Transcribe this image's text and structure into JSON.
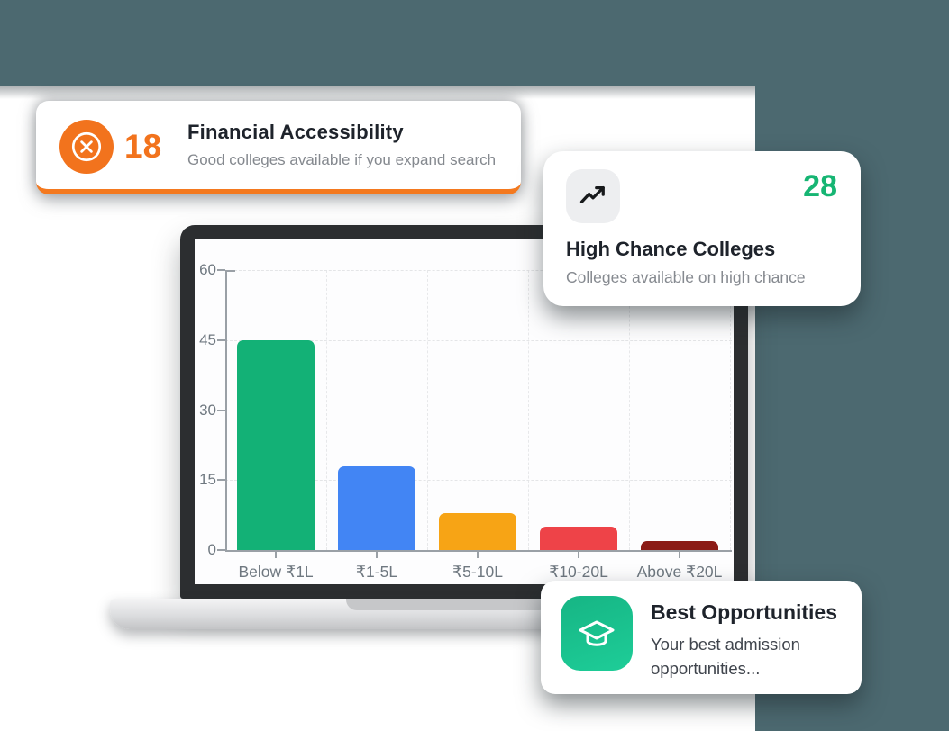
{
  "page": {
    "backdrop_color": "#4C6970",
    "panel_color": "#FFFFFF"
  },
  "cards": {
    "financial": {
      "value": "18",
      "title": "Financial Accessibility",
      "subtitle": "Good colleges available if you expand search",
      "accent": "#F2731D",
      "icon": "x-circle-icon"
    },
    "high_chance": {
      "value": "28",
      "title": "High Chance Colleges",
      "subtitle": "Colleges available on high chance",
      "accent": "#16B573",
      "icon": "trending-up-icon"
    },
    "best": {
      "title": "Best Opportunities",
      "subtitle": "Your best admission opportunities...",
      "accent": "#18C28E",
      "icon": "graduation-cap-icon"
    }
  },
  "chart_data": {
    "type": "bar",
    "categories": [
      "Below ₹1L",
      "₹1-5L",
      "₹5-10L",
      "₹10-20L",
      "Above ₹20L"
    ],
    "values": [
      45,
      18,
      8,
      5,
      2
    ],
    "bar_colors": [
      "#13B176",
      "#4285F4",
      "#F7A415",
      "#EE4348",
      "#8B1B16"
    ],
    "yticks": [
      0,
      15,
      30,
      45,
      60
    ],
    "ylim": [
      0,
      60
    ],
    "grid": "dashed",
    "legend": "none",
    "title": "",
    "xlabel": "",
    "ylabel": ""
  }
}
